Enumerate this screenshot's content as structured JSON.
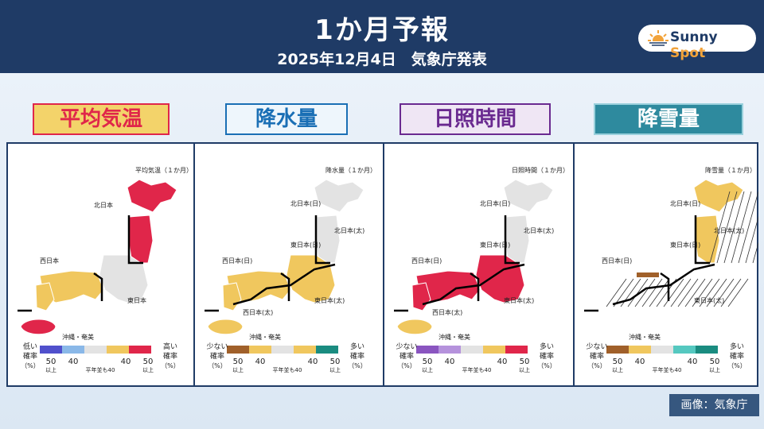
{
  "header": {
    "title": "1か月予報",
    "subtitle": "2025年12月4日　気象庁発表"
  },
  "logo": {
    "word1": "Sunny",
    "word2": "Spot"
  },
  "colors": {
    "header_bg": "#1f3b66",
    "above": "#e0264a",
    "normal": "#f0c75e",
    "below": "#4a4ac8",
    "gray": "#e3e3e3",
    "snow_brown": "#a0602a",
    "teal": "#1a8c80"
  },
  "panels": [
    {
      "label": "平均気温",
      "label_color": "#e0264a",
      "label_bg": "#f3d36a",
      "map_title": "平均気温（１か月）",
      "regions": [
        "北日本",
        "西日本",
        "東日本"
      ],
      "okinawa": "沖縄・奄美",
      "legend": {
        "left_top": "低い",
        "left_mid": "確率",
        "left_bot": "（%）",
        "right_top": "高い",
        "right_mid": "確率",
        "right_bot": "（%）",
        "n1": "50",
        "n2": "40",
        "n3": "40",
        "n4": "50",
        "sub1": "以上",
        "sub4": "以上",
        "normal_note": "平年並も40"
      },
      "region_values": [
        {
          "region": "北日本",
          "category": "above",
          "probability_pct": 50
        },
        {
          "region": "東日本",
          "category": "normal",
          "probability_pct": 40
        },
        {
          "region": "西日本",
          "category": "normal",
          "probability_pct": 40
        },
        {
          "region": "沖縄・奄美",
          "category": "above",
          "probability_pct": 50
        }
      ]
    },
    {
      "label": "降水量",
      "label_color": "#1a6fb5",
      "label_bg": "#eef6fc",
      "map_title": "降水量（１か月）",
      "regions": [
        "北日本(日)",
        "北日本(太)",
        "東日本(日)",
        "西日本(日)",
        "東日本(太)",
        "西日本(太)"
      ],
      "okinawa": "沖縄・奄美",
      "legend": {
        "left_top": "少ない",
        "left_mid": "確率",
        "left_bot": "（%）",
        "right_top": "多い",
        "right_mid": "確率",
        "right_bot": "（%）",
        "n1": "50",
        "n2": "40",
        "n3": "40",
        "n4": "50",
        "sub1": "以上",
        "sub4": "以上",
        "normal_note": "平年並も40"
      }
    },
    {
      "label": "日照時間",
      "label_color": "#6a2a90",
      "label_bg": "#efe6f4",
      "map_title": "日照時間（１か月）",
      "regions": [
        "北日本(日)",
        "北日本(太)",
        "東日本(日)",
        "西日本(日)",
        "東日本(太)",
        "西日本(太)"
      ],
      "okinawa": "沖縄・奄美",
      "legend": {
        "left_top": "少ない",
        "left_mid": "確率",
        "left_bot": "（%）",
        "right_top": "多い",
        "right_mid": "確率",
        "right_bot": "（%）",
        "n1": "50",
        "n2": "40",
        "n3": "40",
        "n4": "50",
        "sub1": "以上",
        "sub4": "以上",
        "normal_note": "平年並も40"
      }
    },
    {
      "label": "降雪量",
      "label_color": "#ffffff",
      "label_bg": "#2e8a9e",
      "map_title": "降雪量（１か月）",
      "regions": [
        "北日本(日)",
        "北日本(太)",
        "東日本(日)",
        "西日本(日)",
        "東日本(太)"
      ],
      "okinawa": "沖縄・奄美",
      "legend": {
        "left_top": "少ない",
        "left_mid": "確率",
        "left_bot": "（%）",
        "right_top": "多い",
        "right_mid": "確率",
        "right_bot": "（%）",
        "n1": "50",
        "n2": "40",
        "n3": "40",
        "n4": "50",
        "sub1": "以上",
        "sub4": "以上",
        "normal_note": "平年並も40"
      }
    }
  ],
  "credit": "画像：気象庁"
}
